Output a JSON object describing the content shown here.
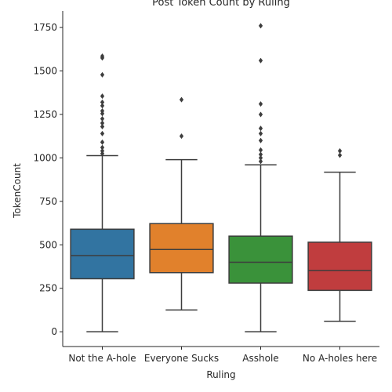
{
  "chart_data": {
    "type": "box",
    "title": "Post Token Count by Ruling",
    "xlabel": "Ruling",
    "ylabel": "TokenCount",
    "ylim": [
      -85,
      1845
    ],
    "yticks": [
      0,
      250,
      500,
      750,
      1000,
      1250,
      1500,
      1750
    ],
    "grid": false,
    "series": [
      {
        "name": "Not the A-hole",
        "color": "#3274a1",
        "whisker_low": 0,
        "q1": 305,
        "median": 438,
        "q3": 590,
        "whisker_high": 1013,
        "outliers": [
          1025,
          1040,
          1060,
          1090,
          1140,
          1180,
          1200,
          1225,
          1255,
          1270,
          1300,
          1320,
          1355,
          1478,
          1575,
          1585
        ]
      },
      {
        "name": "Everyone Sucks",
        "color": "#e1812c",
        "whisker_low": 125,
        "q1": 340,
        "median": 473,
        "q3": 622,
        "whisker_high": 990,
        "outliers": [
          1125,
          1335
        ]
      },
      {
        "name": "Asshole",
        "color": "#3a923a",
        "whisker_low": 0,
        "q1": 280,
        "median": 400,
        "q3": 550,
        "whisker_high": 960,
        "outliers": [
          980,
          1000,
          1020,
          1045,
          1100,
          1140,
          1170,
          1250,
          1310,
          1560,
          1760
        ]
      },
      {
        "name": "No A-holes here",
        "color": "#c03d3e",
        "whisker_low": 60,
        "q1": 238,
        "median": 352,
        "q3": 515,
        "whisker_high": 918,
        "outliers": [
          1015,
          1040
        ]
      }
    ]
  }
}
